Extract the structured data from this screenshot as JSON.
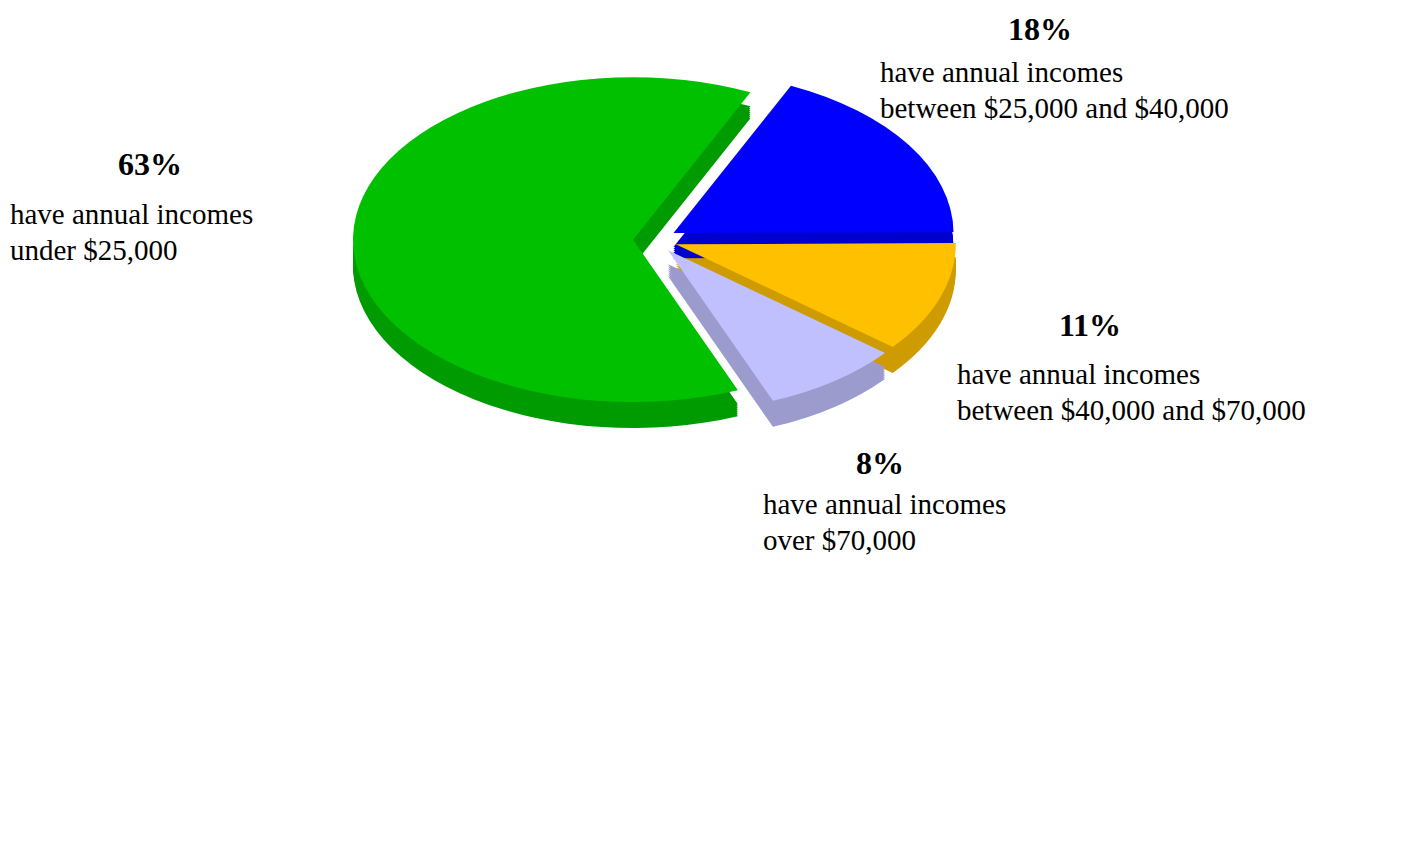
{
  "chart_data": {
    "type": "pie",
    "categories": [
      "have annual incomes under $25,000",
      "have annual incomes between $25,000 and $40,000",
      "have annual incomes between $40,000 and $70,000",
      "have annual incomes over $70,000"
    ],
    "values": [
      63,
      18,
      11,
      8
    ],
    "value_labels": [
      "63%",
      "18%",
      "11%",
      "8%"
    ],
    "colors": [
      "#00c000",
      "#0000ff",
      "#ffc000",
      "#c0c0ff"
    ],
    "data_labels": true
  }
}
